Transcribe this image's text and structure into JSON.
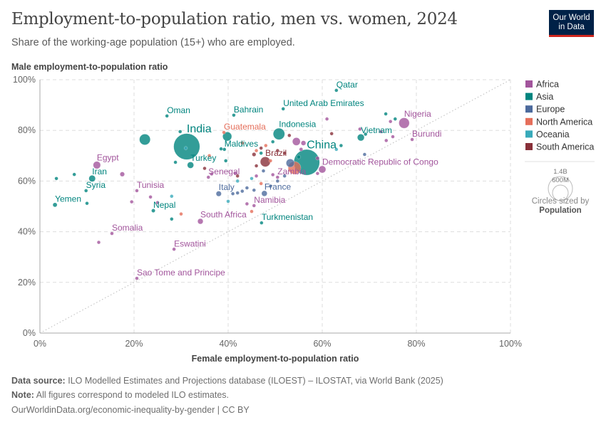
{
  "header": {
    "title": "Employment-to-population ratio, men vs. women, 2024",
    "subtitle": "Share of the working-age population (15+) who are employed.",
    "logo_line1": "Our World",
    "logo_line2": "in Data"
  },
  "footer": {
    "source_label": "Data source:",
    "source_text": "ILO Modelled Estimates and Projections database (ILOEST) – ILOSTAT, via World Bank (2025)",
    "note_label": "Note:",
    "note_text": "All figures correspond to modeled ILO estimates.",
    "url": "OurWorldinData.org/economic-inequality-by-gender | CC BY"
  },
  "chart_data": {
    "type": "scatter",
    "xlabel": "Female employment-to-population ratio",
    "ylabel": "Male employment-to-population ratio",
    "xlim": [
      0,
      100
    ],
    "ylim": [
      0,
      100
    ],
    "x_ticks": [
      "0%",
      "20%",
      "40%",
      "60%",
      "80%",
      "100%"
    ],
    "y_ticks": [
      "0%",
      "20%",
      "40%",
      "60%",
      "80%",
      "100%"
    ],
    "grid": true,
    "reference_line": "y = x",
    "legend_position": "right",
    "legend": [
      {
        "name": "Africa",
        "color": "#a2559c"
      },
      {
        "name": "Asia",
        "color": "#00847e"
      },
      {
        "name": "Europe",
        "color": "#4c6a9c"
      },
      {
        "name": "North America",
        "color": "#e56e5a"
      },
      {
        "name": "Oceania",
        "color": "#38aaba"
      },
      {
        "name": "South America",
        "color": "#883039"
      }
    ],
    "size_legend": {
      "title": "Circles sized by",
      "variable": "Population",
      "large": "1.4B",
      "small": "600M"
    },
    "labeled_points": [
      {
        "label": "Qatar",
        "x": 63.0,
        "y": 95.8,
        "region": "Asia",
        "pop_m": 3
      },
      {
        "label": "United Arab Emirates",
        "x": 51.7,
        "y": 88.5,
        "region": "Asia",
        "pop_m": 10
      },
      {
        "label": "Bahrain",
        "x": 41.2,
        "y": 86.0,
        "region": "Asia",
        "pop_m": 1.5
      },
      {
        "label": "Oman",
        "x": 27.0,
        "y": 85.7,
        "region": "Asia",
        "pop_m": 5
      },
      {
        "label": "India",
        "x": 31.2,
        "y": 73.6,
        "region": "Asia",
        "pop_m": 1450,
        "big": true
      },
      {
        "label": "Indonesia",
        "x": 50.8,
        "y": 78.6,
        "region": "Asia",
        "pop_m": 283
      },
      {
        "label": "Guatemala",
        "x": 39.1,
        "y": 79.2,
        "region": "North America",
        "pop_m": 18
      },
      {
        "label": "Maldives",
        "x": 39.2,
        "y": 72.5,
        "region": "Asia",
        "pop_m": 0.5
      },
      {
        "label": "Turkey",
        "x": 32.0,
        "y": 66.3,
        "region": "Asia",
        "pop_m": 87
      },
      {
        "label": "Senegal",
        "x": 35.8,
        "y": 61.5,
        "region": "Africa",
        "pop_m": 18
      },
      {
        "label": "Egypt",
        "x": 12.1,
        "y": 66.3,
        "region": "Africa",
        "pop_m": 116
      },
      {
        "label": "Iran",
        "x": 11.1,
        "y": 61.0,
        "region": "Asia",
        "pop_m": 91
      },
      {
        "label": "Syria",
        "x": 9.8,
        "y": 56.2,
        "region": "Asia",
        "pop_m": 24
      },
      {
        "label": "Yemen",
        "x": 3.2,
        "y": 50.6,
        "region": "Asia",
        "pop_m": 40
      },
      {
        "label": "Tunisia",
        "x": 20.6,
        "y": 56.2,
        "region": "Africa",
        "pop_m": 12
      },
      {
        "label": "Nepal",
        "x": 24.1,
        "y": 48.3,
        "region": "Asia",
        "pop_m": 30
      },
      {
        "label": "South Africa",
        "x": 34.1,
        "y": 44.1,
        "region": "Africa",
        "pop_m": 64
      },
      {
        "label": "Somalia",
        "x": 15.3,
        "y": 39.3,
        "region": "Africa",
        "pop_m": 19
      },
      {
        "label": "Eswatini",
        "x": 28.5,
        "y": 33.1,
        "region": "Africa",
        "pop_m": 1.2
      },
      {
        "label": "Sao Tome and Principe",
        "x": 20.6,
        "y": 21.6,
        "region": "Africa",
        "pop_m": 0.2
      },
      {
        "label": "Italy",
        "x": 38.0,
        "y": 55.0,
        "region": "Europe",
        "pop_m": 59
      },
      {
        "label": "France",
        "x": 47.7,
        "y": 55.1,
        "region": "Europe",
        "pop_m": 66
      },
      {
        "label": "Namibia",
        "x": 45.5,
        "y": 50.3,
        "region": "Africa",
        "pop_m": 3
      },
      {
        "label": "Turkmenistan",
        "x": 47.1,
        "y": 43.5,
        "region": "Asia",
        "pop_m": 7
      },
      {
        "label": "Brazil",
        "x": 47.9,
        "y": 67.6,
        "region": "South America",
        "pop_m": 212
      },
      {
        "label": "China",
        "x": 56.7,
        "y": 67.4,
        "region": "Asia",
        "pop_m": 1410,
        "big": true
      },
      {
        "label": "Zambia",
        "x": 50.5,
        "y": 61.5,
        "region": "Africa",
        "pop_m": 21
      },
      {
        "label": "Democratic Republic of Congo",
        "x": 60.0,
        "y": 64.6,
        "region": "Africa",
        "pop_m": 109
      },
      {
        "label": "Vietnam",
        "x": 68.2,
        "y": 77.2,
        "region": "Asia",
        "pop_m": 101
      },
      {
        "label": "Nigeria",
        "x": 77.4,
        "y": 82.9,
        "region": "Africa",
        "pop_m": 233
      },
      {
        "label": "Burundi",
        "x": 79.1,
        "y": 76.4,
        "region": "Africa",
        "pop_m": 14
      }
    ],
    "unlabeled_points": [
      [
        22.3,
        76.4,
        "Asia",
        251
      ],
      [
        39.8,
        77.6,
        "Asia",
        173
      ],
      [
        53.2,
        67.1,
        "Europe",
        144
      ],
      [
        54.1,
        65.2,
        "North America",
        345
      ],
      [
        54.5,
        75.6,
        "Africa",
        130
      ],
      [
        3.5,
        61.0,
        "Asia",
        8
      ],
      [
        7.3,
        62.6,
        "Asia",
        10
      ],
      [
        10.0,
        51.2,
        "Asia",
        4
      ],
      [
        29.8,
        79.5,
        "Asia",
        5
      ],
      [
        28.8,
        67.4,
        "Asia",
        4
      ],
      [
        38.5,
        72.7,
        "Asia",
        3
      ],
      [
        28.0,
        45.0,
        "Asia",
        3
      ],
      [
        47.0,
        71.0,
        "Asia",
        10
      ],
      [
        49.5,
        75.5,
        "Asia",
        8
      ],
      [
        73.5,
        86.5,
        "Asia",
        4
      ],
      [
        75.5,
        84.5,
        "Asia",
        7
      ],
      [
        69.2,
        78.5,
        "Asia",
        6
      ],
      [
        55.0,
        69.5,
        "Asia",
        30
      ],
      [
        64.0,
        74.0,
        "Asia",
        3
      ],
      [
        39.5,
        68.0,
        "Asia",
        20
      ],
      [
        17.5,
        62.7,
        "Africa",
        45
      ],
      [
        12.5,
        35.8,
        "Africa",
        3
      ],
      [
        19.5,
        51.8,
        "Africa",
        3
      ],
      [
        25.0,
        51.5,
        "Africa",
        5
      ],
      [
        23.5,
        53.7,
        "Africa",
        3
      ],
      [
        44.0,
        51.0,
        "Africa",
        3
      ],
      [
        41.5,
        63.0,
        "Africa",
        10
      ],
      [
        61.0,
        84.5,
        "Africa",
        14
      ],
      [
        74.5,
        83.5,
        "Africa",
        6
      ],
      [
        72.5,
        79.5,
        "Africa",
        20
      ],
      [
        73.6,
        76.0,
        "Africa",
        8
      ],
      [
        68.0,
        80.5,
        "Africa",
        3
      ],
      [
        75.0,
        77.5,
        "Africa",
        18
      ],
      [
        56.0,
        75.0,
        "Africa",
        50
      ],
      [
        59.0,
        69.0,
        "Africa",
        30
      ],
      [
        59.0,
        63.0,
        "Africa",
        12
      ],
      [
        46.0,
        62.0,
        "Africa",
        5
      ],
      [
        49.5,
        62.5,
        "Africa",
        8
      ],
      [
        36.5,
        62.8,
        "Africa",
        6
      ],
      [
        55.5,
        72.5,
        "Africa",
        28
      ],
      [
        43.0,
        56.0,
        "Europe",
        8
      ],
      [
        44.0,
        57.3,
        "Europe",
        17
      ],
      [
        45.5,
        56.4,
        "Europe",
        10
      ],
      [
        42.0,
        55.3,
        "Europe",
        4
      ],
      [
        41.0,
        55.0,
        "Europe",
        3
      ],
      [
        49.0,
        58.0,
        "Europe",
        9
      ],
      [
        50.5,
        60.0,
        "Europe",
        5
      ],
      [
        52.0,
        62.0,
        "Europe",
        3
      ],
      [
        47.5,
        64.0,
        "Europe",
        10
      ],
      [
        69.0,
        70.5,
        "Europe",
        2
      ],
      [
        43.0,
        75.0,
        "North America",
        5
      ],
      [
        46.0,
        72.0,
        "North America",
        11
      ],
      [
        49.0,
        68.0,
        "North America",
        3
      ],
      [
        47.0,
        59.0,
        "North America",
        4
      ],
      [
        45.0,
        48.0,
        "North America",
        2
      ],
      [
        30.0,
        47.0,
        "North America",
        3
      ],
      [
        36.0,
        70.0,
        "North America",
        6
      ],
      [
        48.0,
        74.0,
        "North America",
        7
      ],
      [
        28.0,
        54.0,
        "Oceania",
        1
      ],
      [
        40.0,
        52.0,
        "Oceania",
        1
      ],
      [
        31.0,
        73.0,
        "Oceania",
        1
      ],
      [
        63.0,
        72.5,
        "Oceania",
        2
      ],
      [
        42.0,
        60.0,
        "Oceania",
        1
      ],
      [
        45.0,
        61.0,
        "Oceania",
        1
      ],
      [
        45.5,
        70.5,
        "South America",
        33
      ],
      [
        46.0,
        66.0,
        "South America",
        18
      ],
      [
        50.5,
        72.0,
        "South America",
        11
      ],
      [
        52.0,
        71.0,
        "South America",
        7
      ],
      [
        47.0,
        73.0,
        "South America",
        3
      ],
      [
        35.0,
        65.0,
        "South America",
        8
      ],
      [
        42.0,
        62.0,
        "South America",
        2
      ],
      [
        53.0,
        78.0,
        "South America",
        7
      ],
      [
        62.0,
        78.7,
        "South America",
        4
      ]
    ]
  }
}
